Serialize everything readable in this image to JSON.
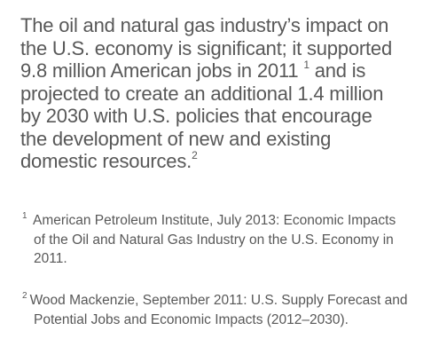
{
  "main": {
    "lines": [
      "The oil and natural gas industry’s impact on",
      "the U.S. economy is significant; it supported",
      "9.8 million American jobs in 2011 ",
      " and is",
      "projected to create an additional 1.4 million",
      "by 2030 with U.S. policies that encourage",
      "the development of new and existing",
      "domestic resources."
    ],
    "ref1": "1",
    "ref2": "2"
  },
  "footnotes": [
    {
      "mark": "1",
      "lines": [
        "American Petroleum Institute, July 2013: Economic Impacts",
        "of the Oil and Natural Gas Industry on the U.S. Economy in",
        "2011."
      ]
    },
    {
      "mark": "2",
      "lines": [
        "Wood Mackenzie, September 2011: U.S. Supply Forecast and",
        "Potential Jobs and Economic Impacts (2012–2030)."
      ]
    }
  ],
  "colors": {
    "text": "#585858",
    "background": "#ffffff"
  }
}
